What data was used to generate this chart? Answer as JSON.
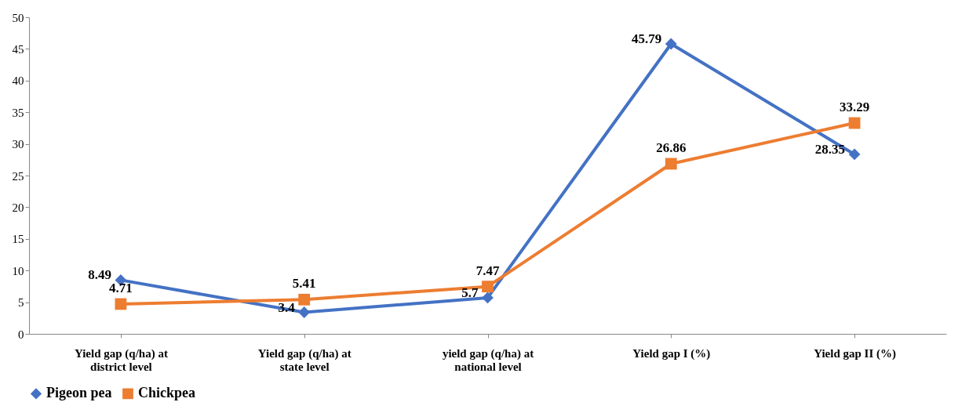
{
  "chart_data": {
    "type": "line",
    "categories": [
      "Yield gap (q/ha) at\ndistrict level",
      "Yield gap (q/ha) at\nstate level",
      "yield gap (q/ha) at\nnational level",
      "Yield gap I (%)",
      "Yield gap II (%)"
    ],
    "series": [
      {
        "name": "Pigeon pea",
        "color": "#4472c4",
        "marker": "diamond",
        "values": [
          8.49,
          3.4,
          5.7,
          45.79,
          28.35
        ]
      },
      {
        "name": "Chickpea",
        "color": "#ed7d31",
        "marker": "square",
        "values": [
          4.71,
          5.41,
          7.47,
          26.86,
          33.29
        ]
      }
    ],
    "ylim": [
      0,
      50
    ],
    "yticks": [
      0,
      5,
      10,
      15,
      20,
      25,
      30,
      35,
      40,
      45,
      50
    ],
    "grid": false,
    "legend": "bottom",
    "data_labels": true,
    "line_style": "solid"
  }
}
